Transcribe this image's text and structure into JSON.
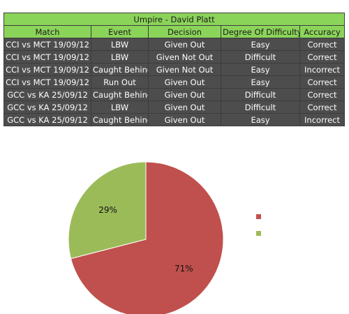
{
  "table": {
    "title": "Umpire - David Platt",
    "headers": [
      "Match",
      "Event",
      "Decision",
      "Degree Of Difficulty",
      "Accuracy"
    ],
    "rows": [
      [
        "CCI vs MCT 19/09/12",
        "LBW",
        "Given Out",
        "Easy",
        "Correct"
      ],
      [
        "CCI vs MCT 19/09/12",
        "LBW",
        "Given Not Out",
        "Difficult",
        "Correct"
      ],
      [
        "CCI vs MCT 19/09/12",
        "Caught Behind",
        "Given Not Out",
        "Easy",
        "Incorrect"
      ],
      [
        "CCI vs MCT 19/09/12",
        "Run Out",
        "Given Out",
        "Easy",
        "Correct"
      ],
      [
        "GCC vs KA 25/09/12",
        "Caught Behind",
        "Given Out",
        "Difficult",
        "Correct"
      ],
      [
        "GCC vs KA 25/09/12",
        "LBW",
        "Given Out",
        "Difficult",
        "Correct"
      ],
      [
        "GCC vs KA 25/09/12",
        "Caught Behind",
        "Given Out",
        "Easy",
        "Incorrect"
      ]
    ]
  },
  "chart_data": {
    "type": "pie",
    "title": "",
    "slices": [
      {
        "label": "71%",
        "value": 71,
        "color": "#c0504d"
      },
      {
        "label": "29%",
        "value": 29,
        "color": "#9bbb59"
      }
    ],
    "legend": {
      "placement": "right",
      "entries": [
        {
          "name": "",
          "color": "#c0504d"
        },
        {
          "name": "",
          "color": "#9bbb59"
        }
      ]
    }
  }
}
